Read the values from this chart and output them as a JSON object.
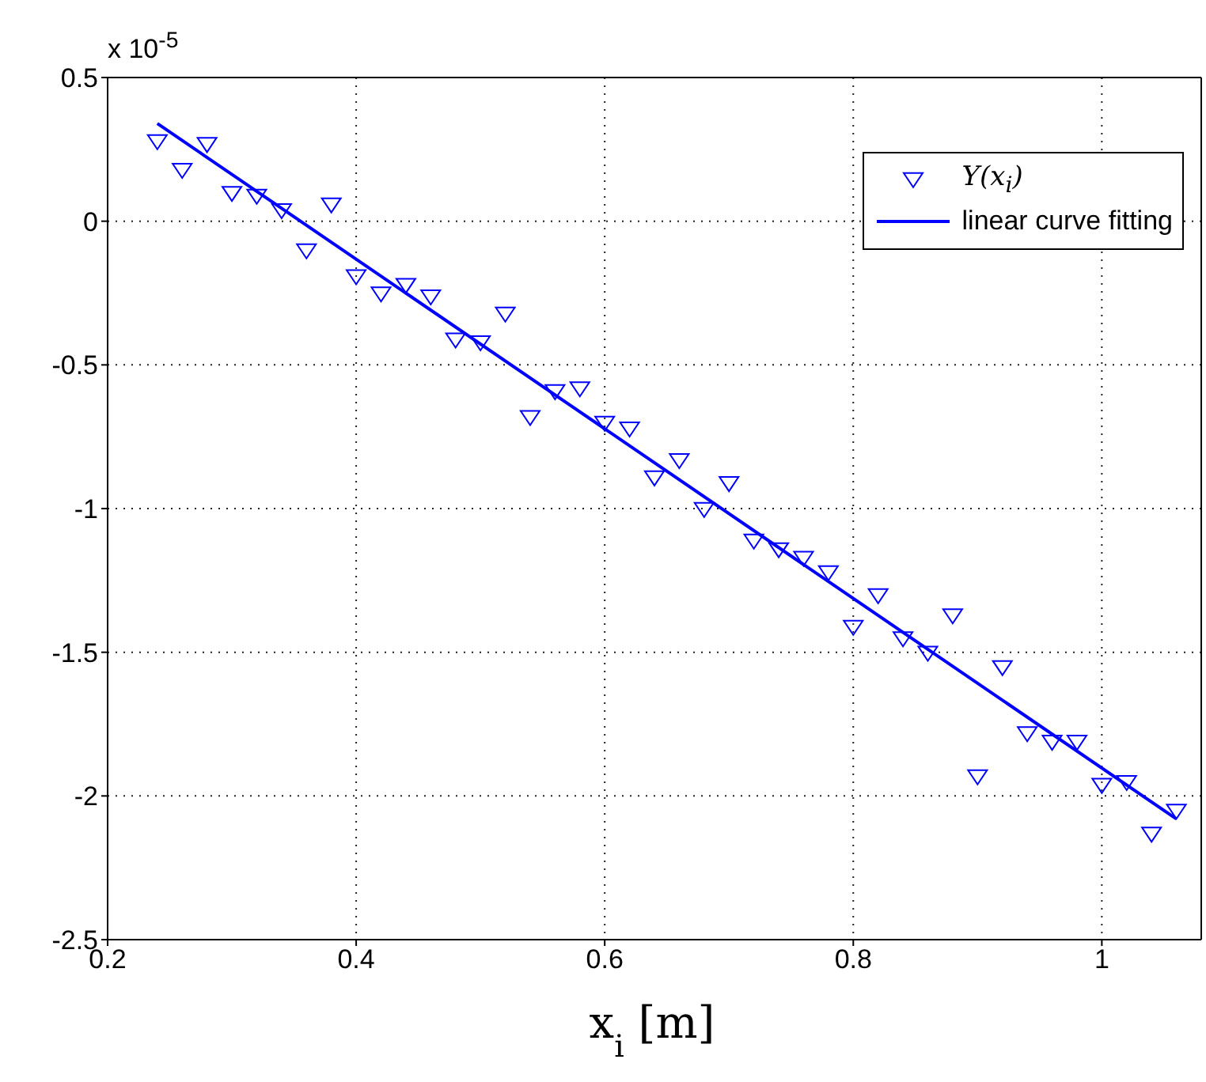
{
  "chart_data": {
    "type": "scatter",
    "xlabel": "x$_{i}$ [m]",
    "annotations": [
      "x 10$^{-5}$"
    ],
    "xlim": [
      0.2,
      1.08
    ],
    "xticks": [
      0.2,
      0.4,
      0.6,
      0.8,
      1
    ],
    "ylim": [
      -2.5,
      0.5
    ],
    "yticks": [
      -2.5,
      -2,
      -1.5,
      -1,
      -0.5,
      0,
      0.5
    ],
    "grid": true,
    "legend": "top right",
    "series": [
      {
        "name": "Y(x$_{i}$)",
        "marker": "triangle",
        "color": "#0000ff",
        "x": [
          0.24,
          0.26,
          0.28,
          0.3,
          0.32,
          0.34,
          0.36,
          0.38,
          0.4,
          0.42,
          0.44,
          0.46,
          0.48,
          0.5,
          0.52,
          0.54,
          0.56,
          0.58,
          0.6,
          0.62,
          0.64,
          0.66,
          0.68,
          0.7,
          0.72,
          0.74,
          0.76,
          0.78,
          0.8,
          0.82,
          0.84,
          0.86,
          0.88,
          0.9,
          0.92,
          0.94,
          0.96,
          0.98,
          1.0,
          1.02,
          1.04,
          1.06
        ],
        "values": [
          0.28,
          0.18,
          0.27,
          0.1,
          0.09,
          0.04,
          -0.1,
          0.06,
          -0.19,
          -0.25,
          -0.22,
          -0.26,
          -0.41,
          -0.42,
          -0.32,
          -0.68,
          -0.59,
          -0.58,
          -0.7,
          -0.72,
          -0.89,
          -0.83,
          -1.0,
          -0.91,
          -1.11,
          -1.14,
          -1.17,
          -1.22,
          -1.41,
          -1.3,
          -1.45,
          -1.5,
          -1.37,
          -1.93,
          -1.55,
          -1.78,
          -1.81,
          -1.81,
          -1.96,
          -1.95,
          -2.13,
          -2.05
        ]
      },
      {
        "name": "linear curve fitting",
        "type": "line",
        "color": "#0000ff",
        "x": [
          0.24,
          1.06
        ],
        "values": [
          0.34,
          -2.08
        ]
      }
    ]
  }
}
